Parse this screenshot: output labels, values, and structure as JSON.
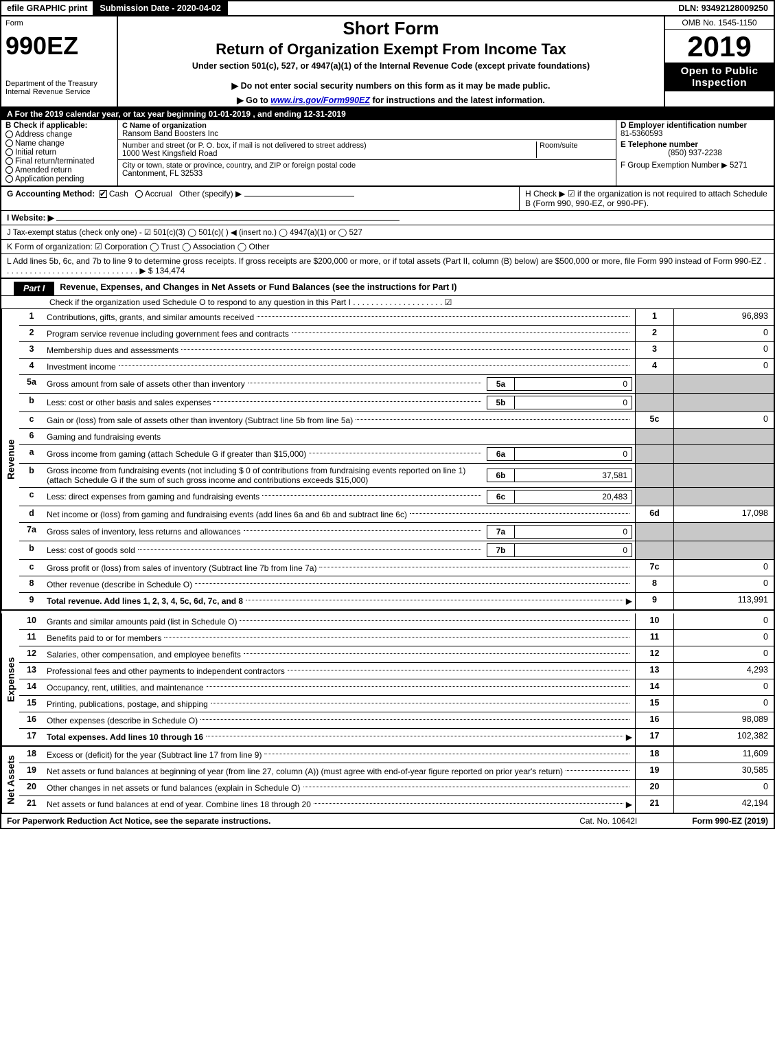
{
  "topbar": {
    "efile": "efile GRAPHIC print",
    "submission_label": "Submission Date - 2020-04-02",
    "dln_label": "DLN: 93492128009250"
  },
  "header": {
    "form_word": "Form",
    "form_number": "990EZ",
    "dept": "Department of the Treasury",
    "irs": "Internal Revenue Service",
    "short_form": "Short Form",
    "main_title": "Return of Organization Exempt From Income Tax",
    "subtitle": "Under section 501(c), 527, or 4947(a)(1) of the Internal Revenue Code (except private foundations)",
    "note1": "▶ Do not enter social security numbers on this form as it may be made public.",
    "note2_pre": "▶ Go to ",
    "note2_link": "www.irs.gov/Form990EZ",
    "note2_post": " for instructions and the latest information.",
    "omb": "OMB No. 1545-1150",
    "year": "2019",
    "open": "Open to Public Inspection"
  },
  "section_a": {
    "text": "A  For the 2019 calendar year, or tax year beginning 01-01-2019 , and ending 12-31-2019"
  },
  "section_b": {
    "title": "B  Check if applicable:",
    "opts": [
      "Address change",
      "Name change",
      "Initial return",
      "Final return/terminated",
      "Amended return",
      "Application pending"
    ]
  },
  "section_c": {
    "name_label": "C Name of organization",
    "name": "Ransom Band Boosters Inc",
    "addr_label": "Number and street (or P. O. box, if mail is not delivered to street address)",
    "room_label": "Room/suite",
    "addr": "1000 West Kingsfield Road",
    "city_label": "City or town, state or province, country, and ZIP or foreign postal code",
    "city": "Cantonment, FL  32533"
  },
  "section_d": {
    "ein_label": "D Employer identification number",
    "ein": "81-5360593",
    "phone_label": "E Telephone number",
    "phone": "(850) 937-2238",
    "group_label": "F Group Exemption Number  ▶ 5271"
  },
  "row_g": {
    "label": "G Accounting Method:",
    "cash": "Cash",
    "accrual": "Accrual",
    "other": "Other (specify) ▶"
  },
  "row_h": {
    "text": "H  Check ▶  ☑  if the organization is not required to attach Schedule B (Form 990, 990-EZ, or 990-PF)."
  },
  "row_i": {
    "label": "I Website: ▶"
  },
  "row_j": {
    "text": "J Tax-exempt status (check only one) - ☑ 501(c)(3)  ◯ 501(c)(  ) ◀ (insert no.)  ◯ 4947(a)(1) or  ◯ 527"
  },
  "row_k": {
    "text": "K Form of organization:  ☑ Corporation  ◯ Trust  ◯ Association  ◯ Other"
  },
  "row_l": {
    "text": "L Add lines 5b, 6c, and 7b to line 9 to determine gross receipts. If gross receipts are $200,000 or more, or if total assets (Part II, column (B) below) are $500,000 or more, file Form 990 instead of Form 990-EZ . . . . . . . . . . . . . . . . . . . . . . . . . . . . . . ▶ $ 134,474"
  },
  "part1": {
    "tab": "Part I",
    "title": "Revenue, Expenses, and Changes in Net Assets or Fund Balances (see the instructions for Part I)",
    "sub": "Check if the organization used Schedule O to respond to any question in this Part I . . . . . . . . . . . . . . . . . . . . ☑"
  },
  "sidelabels": {
    "revenue": "Revenue",
    "expenses": "Expenses",
    "netassets": "Net Assets"
  },
  "revenue_lines": [
    {
      "n": "1",
      "desc": "Contributions, gifts, grants, and similar amounts received",
      "box": "1",
      "val": "96,893"
    },
    {
      "n": "2",
      "desc": "Program service revenue including government fees and contracts",
      "box": "2",
      "val": "0"
    },
    {
      "n": "3",
      "desc": "Membership dues and assessments",
      "box": "3",
      "val": "0"
    },
    {
      "n": "4",
      "desc": "Investment income",
      "box": "4",
      "val": "0"
    },
    {
      "n": "5a",
      "desc": "Gross amount from sale of assets other than inventory",
      "sub": "5a",
      "subval": "0",
      "gray": true
    },
    {
      "n": "b",
      "desc": "Less: cost or other basis and sales expenses",
      "sub": "5b",
      "subval": "0",
      "gray": true
    },
    {
      "n": "c",
      "desc": "Gain or (loss) from sale of assets other than inventory (Subtract line 5b from line 5a)",
      "box": "5c",
      "val": "0"
    },
    {
      "n": "6",
      "desc": "Gaming and fundraising events",
      "gray": true,
      "noval": true
    },
    {
      "n": "a",
      "desc": "Gross income from gaming (attach Schedule G if greater than $15,000)",
      "sub": "6a",
      "subval": "0",
      "gray": true
    },
    {
      "n": "b",
      "desc": "Gross income from fundraising events (not including $ 0  of contributions from fundraising events reported on line 1) (attach Schedule G if the sum of such gross income and contributions exceeds $15,000)",
      "sub": "6b",
      "subval": "37,581",
      "gray": true
    },
    {
      "n": "c",
      "desc": "Less: direct expenses from gaming and fundraising events",
      "sub": "6c",
      "subval": "20,483",
      "gray": true
    },
    {
      "n": "d",
      "desc": "Net income or (loss) from gaming and fundraising events (add lines 6a and 6b and subtract line 6c)",
      "box": "6d",
      "val": "17,098"
    },
    {
      "n": "7a",
      "desc": "Gross sales of inventory, less returns and allowances",
      "sub": "7a",
      "subval": "0",
      "gray": true
    },
    {
      "n": "b",
      "desc": "Less: cost of goods sold",
      "sub": "7b",
      "subval": "0",
      "gray": true
    },
    {
      "n": "c",
      "desc": "Gross profit or (loss) from sales of inventory (Subtract line 7b from line 7a)",
      "box": "7c",
      "val": "0"
    },
    {
      "n": "8",
      "desc": "Other revenue (describe in Schedule O)",
      "box": "8",
      "val": "0"
    },
    {
      "n": "9",
      "desc": "Total revenue. Add lines 1, 2, 3, 4, 5c, 6d, 7c, and 8",
      "box": "9",
      "val": "113,991",
      "bold": true,
      "arrow": true
    }
  ],
  "expense_lines": [
    {
      "n": "10",
      "desc": "Grants and similar amounts paid (list in Schedule O)",
      "box": "10",
      "val": "0"
    },
    {
      "n": "11",
      "desc": "Benefits paid to or for members",
      "box": "11",
      "val": "0"
    },
    {
      "n": "12",
      "desc": "Salaries, other compensation, and employee benefits",
      "box": "12",
      "val": "0"
    },
    {
      "n": "13",
      "desc": "Professional fees and other payments to independent contractors",
      "box": "13",
      "val": "4,293"
    },
    {
      "n": "14",
      "desc": "Occupancy, rent, utilities, and maintenance",
      "box": "14",
      "val": "0"
    },
    {
      "n": "15",
      "desc": "Printing, publications, postage, and shipping",
      "box": "15",
      "val": "0"
    },
    {
      "n": "16",
      "desc": "Other expenses (describe in Schedule O)",
      "box": "16",
      "val": "98,089"
    },
    {
      "n": "17",
      "desc": "Total expenses. Add lines 10 through 16",
      "box": "17",
      "val": "102,382",
      "bold": true,
      "arrow": true
    }
  ],
  "netasset_lines": [
    {
      "n": "18",
      "desc": "Excess or (deficit) for the year (Subtract line 17 from line 9)",
      "box": "18",
      "val": "11,609"
    },
    {
      "n": "19",
      "desc": "Net assets or fund balances at beginning of year (from line 27, column (A)) (must agree with end-of-year figure reported on prior year's return)",
      "box": "19",
      "val": "30,585",
      "graytop": true
    },
    {
      "n": "20",
      "desc": "Other changes in net assets or fund balances (explain in Schedule O)",
      "box": "20",
      "val": "0"
    },
    {
      "n": "21",
      "desc": "Net assets or fund balances at end of year. Combine lines 18 through 20",
      "box": "21",
      "val": "42,194",
      "arrow": true
    }
  ],
  "footer": {
    "left": "For Paperwork Reduction Act Notice, see the separate instructions.",
    "mid": "Cat. No. 10642I",
    "right": "Form 990-EZ (2019)"
  }
}
